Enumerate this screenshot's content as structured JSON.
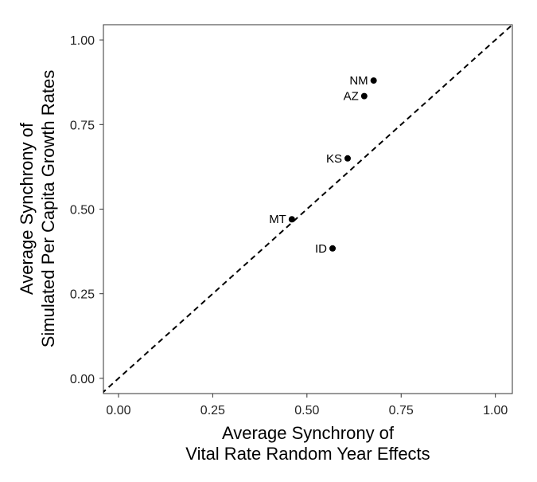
{
  "chart_data": {
    "type": "scatter",
    "title": "",
    "xlabel_lines": [
      "Average Synchrony of",
      "Vital Rate Random Year Effects"
    ],
    "ylabel_lines": [
      "Average Synchrony of",
      "Simulated Per Capita Growth Rates"
    ],
    "xlim": [
      -0.04,
      1.045
    ],
    "ylim": [
      -0.045,
      1.045
    ],
    "x_ticks": [
      0.0,
      0.25,
      0.5,
      0.75,
      1.0
    ],
    "x_tick_labels": [
      "0.00",
      "0.25",
      "0.50",
      "0.75",
      "1.00"
    ],
    "y_ticks": [
      0.0,
      0.25,
      0.5,
      0.75,
      1.0
    ],
    "y_tick_labels": [
      "0.00",
      "0.25",
      "0.50",
      "0.75",
      "1.00"
    ],
    "grid": false,
    "reference_line": {
      "type": "dashed",
      "slope": 1,
      "intercept": 0
    },
    "points": [
      {
        "label": "NM",
        "x": 0.677,
        "y": 0.88
      },
      {
        "label": "AZ",
        "x": 0.652,
        "y": 0.834
      },
      {
        "label": "KS",
        "x": 0.608,
        "y": 0.65
      },
      {
        "label": "MT",
        "x": 0.46,
        "y": 0.47
      },
      {
        "label": "ID",
        "x": 0.568,
        "y": 0.384
      }
    ],
    "colors": {
      "points": "#000000",
      "panel_border": "#333333",
      "reference_line": "#000000"
    }
  }
}
